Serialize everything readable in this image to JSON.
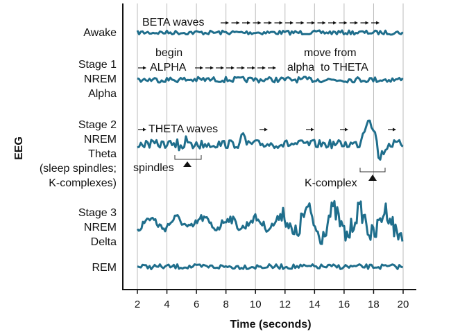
{
  "y_axis_label": "EEG",
  "x_axis_label": "Time (seconds)",
  "x_ticks": [
    "2",
    "4",
    "6",
    "8",
    "10",
    "12",
    "14",
    "16",
    "18",
    "20"
  ],
  "x_range": [
    1,
    21
  ],
  "wave_color": "#1f6e8c",
  "stages": [
    {
      "lines": [
        "Awake"
      ]
    },
    {
      "lines": [
        "Stage 1",
        "NREM",
        "Alpha"
      ]
    },
    {
      "lines": [
        "Stage 2",
        "NREM",
        "Theta",
        "(sleep spindles;",
        "K-complexes)"
      ]
    },
    {
      "lines": [
        "Stage 3",
        "NREM",
        "Delta"
      ]
    },
    {
      "lines": [
        "REM"
      ]
    }
  ],
  "annotations": {
    "beta": "BETA waves",
    "begin": "begin",
    "alpha": "ALPHA",
    "move_from": "move from",
    "alpha_to_theta": "alpha  to THETA",
    "theta": "THETA waves",
    "spindles": "spindles",
    "k_complex": "K-complex"
  }
}
